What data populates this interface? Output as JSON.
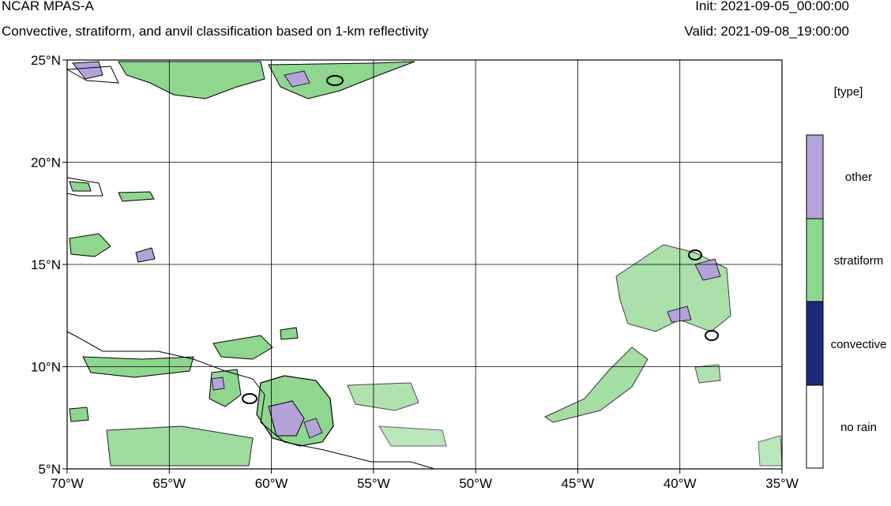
{
  "header": {
    "title": "NCAR MPAS-A",
    "subtitle": "Convective, stratiform, and anvil classification based on 1-km reflectivity",
    "init": "Init: 2021-09-05_00:00:00",
    "valid": "Valid: 2021-09-08_19:00:00"
  },
  "axes": {
    "lat_labels": [
      "25°N",
      "20°N",
      "15°N",
      "10°N",
      "5°N"
    ],
    "lon_labels": [
      "70°W",
      "65°W",
      "60°W",
      "55°W",
      "50°W",
      "45°W",
      "40°W",
      "35°W"
    ],
    "lat_range": [
      5,
      25
    ],
    "lon_range": [
      -70,
      -35
    ]
  },
  "legend": {
    "title": "[type]",
    "items": [
      {
        "label": "other",
        "color": "#b3a3d9"
      },
      {
        "label": "stratiform",
        "color": "#8fd68f"
      },
      {
        "label": "convective",
        "color": "#1a2a7a"
      },
      {
        "label": "no rain",
        "color": "#ffffff"
      }
    ]
  },
  "colors": {
    "other": "#b3a3d9",
    "stratiform": "#8fd68f",
    "convective": "#1a2a7a",
    "grid": "#000000"
  }
}
